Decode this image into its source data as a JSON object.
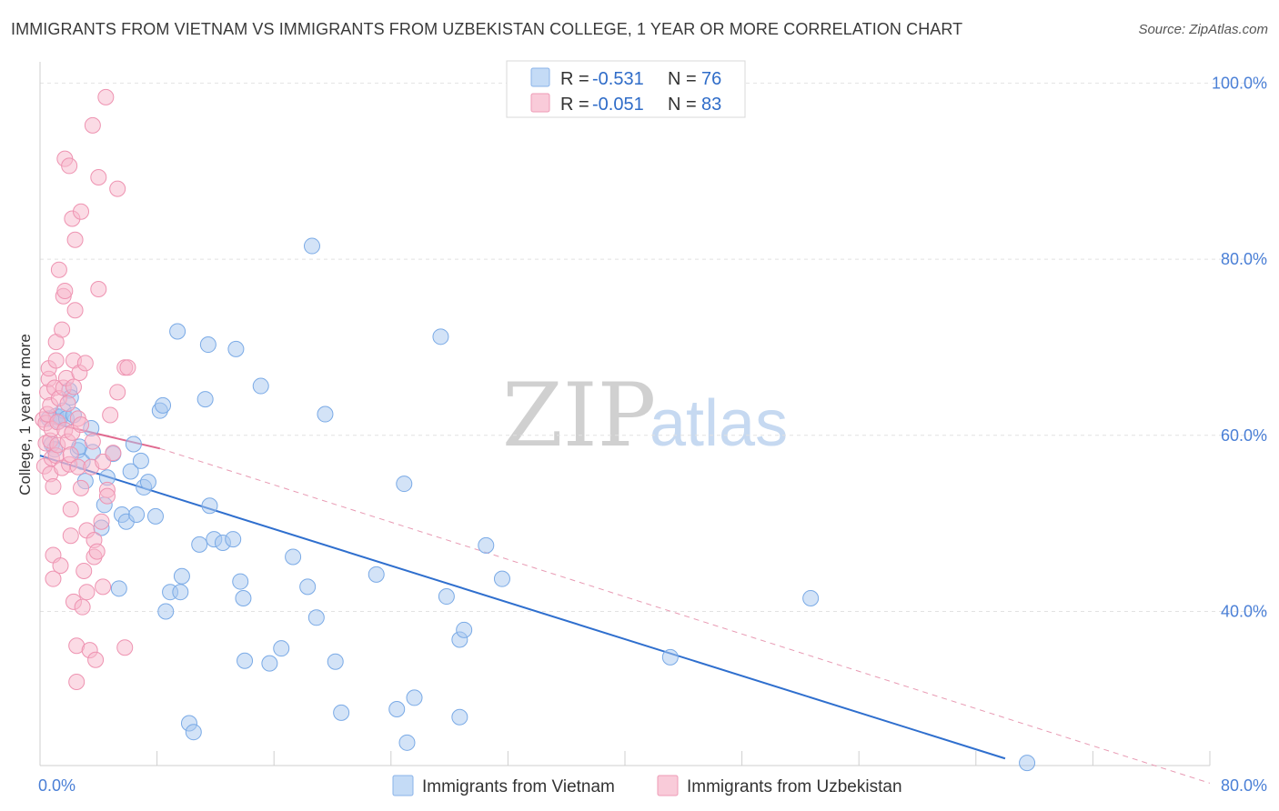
{
  "title": "IMMIGRANTS FROM VIETNAM VS IMMIGRANTS FROM UZBEKISTAN COLLEGE, 1 YEAR OR MORE CORRELATION CHART",
  "source": "Source: ZipAtlas.com",
  "watermark": {
    "zip": "ZIP",
    "atlas": "atlas"
  },
  "legend_box": {
    "rows": [
      {
        "r_label": "R =",
        "r_value": "-0.531",
        "n_label": "N =",
        "n_value": "76",
        "color": "#a8c8f0"
      },
      {
        "r_label": "R =",
        "r_value": "-0.051",
        "n_label": "N =",
        "n_value": "83",
        "color": "#f7b8cc"
      }
    ]
  },
  "chart_data": {
    "type": "scatter",
    "title": "IMMIGRANTS FROM VIETNAM VS IMMIGRANTS FROM UZBEKISTAN COLLEGE, 1 YEAR OR MORE CORRELATION CHART",
    "xlabel": "",
    "ylabel": "College, 1 year or more",
    "xlim": [
      0,
      80
    ],
    "ylim": [
      22.5,
      102
    ],
    "x_tick_labels": [
      "0.0%",
      "80.0%"
    ],
    "y_tick_labels": [
      "100.0%",
      "80.0%",
      "60.0%",
      "40.0%"
    ],
    "y_tick_values": [
      100,
      80,
      60,
      40
    ],
    "grid": true,
    "legend_position": "bottom",
    "series": [
      {
        "name": "Immigrants from Vietnam",
        "color": "#a8c8f0",
        "stroke": "#7aaae6",
        "trend": {
          "x": [
            0,
            66
          ],
          "y": [
            57.7,
            23.3
          ],
          "color": "#2f6fce",
          "dashed": false
        },
        "points": [
          [
            0.6,
            61.9
          ],
          [
            0.8,
            59.0
          ],
          [
            1.0,
            58.4
          ],
          [
            1.1,
            62.2
          ],
          [
            1.3,
            61.6
          ],
          [
            1.4,
            62.1
          ],
          [
            1.6,
            62.8
          ],
          [
            1.8,
            61.9
          ],
          [
            2.0,
            65.1
          ],
          [
            2.1,
            64.3
          ],
          [
            2.3,
            62.3
          ],
          [
            2.6,
            58.3
          ],
          [
            2.7,
            58.7
          ],
          [
            2.9,
            57.0
          ],
          [
            3.1,
            54.8
          ],
          [
            3.5,
            60.8
          ],
          [
            3.6,
            58.1
          ],
          [
            4.2,
            49.5
          ],
          [
            4.4,
            52.1
          ],
          [
            4.6,
            55.2
          ],
          [
            5.0,
            57.9
          ],
          [
            5.4,
            42.6
          ],
          [
            5.6,
            51.0
          ],
          [
            5.9,
            50.2
          ],
          [
            6.2,
            55.9
          ],
          [
            6.4,
            59.0
          ],
          [
            6.6,
            51.0
          ],
          [
            6.9,
            57.1
          ],
          [
            7.1,
            54.1
          ],
          [
            7.4,
            54.7
          ],
          [
            7.9,
            50.8
          ],
          [
            8.2,
            62.8
          ],
          [
            8.4,
            63.4
          ],
          [
            8.6,
            40.0
          ],
          [
            8.9,
            42.2
          ],
          [
            9.4,
            71.8
          ],
          [
            9.6,
            42.2
          ],
          [
            9.7,
            44.0
          ],
          [
            10.2,
            27.3
          ],
          [
            10.5,
            26.3
          ],
          [
            10.9,
            47.6
          ],
          [
            11.3,
            64.1
          ],
          [
            11.5,
            70.3
          ],
          [
            11.6,
            52.0
          ],
          [
            11.9,
            48.2
          ],
          [
            12.5,
            47.8
          ],
          [
            13.2,
            48.2
          ],
          [
            13.4,
            69.8
          ],
          [
            13.7,
            43.4
          ],
          [
            13.9,
            41.5
          ],
          [
            14.0,
            34.4
          ],
          [
            15.1,
            65.6
          ],
          [
            15.7,
            34.1
          ],
          [
            16.5,
            35.8
          ],
          [
            17.3,
            46.2
          ],
          [
            18.3,
            42.8
          ],
          [
            18.6,
            81.5
          ],
          [
            18.9,
            39.3
          ],
          [
            19.5,
            62.4
          ],
          [
            20.2,
            34.3
          ],
          [
            20.6,
            28.5
          ],
          [
            23.0,
            44.2
          ],
          [
            24.4,
            28.9
          ],
          [
            24.9,
            54.5
          ],
          [
            25.1,
            25.1
          ],
          [
            25.6,
            30.2
          ],
          [
            27.4,
            71.2
          ],
          [
            27.8,
            41.7
          ],
          [
            28.7,
            36.8
          ],
          [
            29.0,
            37.9
          ],
          [
            28.7,
            28.0
          ],
          [
            30.5,
            47.5
          ],
          [
            31.6,
            43.7
          ],
          [
            43.1,
            34.8
          ],
          [
            52.7,
            41.5
          ],
          [
            67.5,
            22.8
          ]
        ]
      },
      {
        "name": "Immigrants from Uzbekistan",
        "color": "#f7b8cc",
        "stroke": "#ee93b1",
        "trend": {
          "x": [
            0,
            8.2
          ],
          "y": [
            61.7,
            58.5
          ],
          "color": "#e0698f",
          "dashed": false
        },
        "trend_ext": {
          "x": [
            8.2,
            80
          ],
          "y": [
            58.5,
            20.5
          ],
          "color": "#e89ab3",
          "dashed": true
        },
        "points": [
          [
            0.2,
            61.8
          ],
          [
            0.3,
            56.5
          ],
          [
            0.4,
            59.1
          ],
          [
            0.4,
            61.4
          ],
          [
            0.5,
            62.4
          ],
          [
            0.5,
            64.9
          ],
          [
            0.6,
            66.4
          ],
          [
            0.6,
            67.6
          ],
          [
            0.7,
            55.6
          ],
          [
            0.7,
            59.4
          ],
          [
            0.7,
            63.4
          ],
          [
            0.8,
            57.4
          ],
          [
            0.8,
            60.7
          ],
          [
            0.9,
            43.7
          ],
          [
            0.9,
            46.4
          ],
          [
            0.9,
            54.2
          ],
          [
            1.0,
            65.4
          ],
          [
            1.1,
            57.7
          ],
          [
            1.1,
            68.5
          ],
          [
            1.1,
            70.6
          ],
          [
            1.2,
            58.9
          ],
          [
            1.2,
            61.5
          ],
          [
            1.3,
            64.2
          ],
          [
            1.3,
            78.8
          ],
          [
            1.4,
            45.2
          ],
          [
            1.5,
            56.3
          ],
          [
            1.5,
            72.0
          ],
          [
            1.6,
            65.4
          ],
          [
            1.6,
            75.8
          ],
          [
            1.7,
            91.4
          ],
          [
            1.7,
            76.4
          ],
          [
            1.7,
            60.6
          ],
          [
            1.8,
            66.5
          ],
          [
            1.9,
            59.3
          ],
          [
            1.9,
            63.6
          ],
          [
            2.0,
            56.7
          ],
          [
            2.0,
            90.6
          ],
          [
            2.1,
            51.6
          ],
          [
            2.1,
            48.6
          ],
          [
            2.1,
            57.8
          ],
          [
            2.2,
            60.3
          ],
          [
            2.2,
            84.6
          ],
          [
            2.3,
            41.1
          ],
          [
            2.3,
            65.5
          ],
          [
            2.3,
            68.5
          ],
          [
            2.4,
            74.2
          ],
          [
            2.4,
            82.2
          ],
          [
            2.5,
            36.1
          ],
          [
            2.5,
            32.0
          ],
          [
            2.6,
            56.4
          ],
          [
            2.6,
            61.9
          ],
          [
            2.7,
            67.1
          ],
          [
            2.8,
            61.2
          ],
          [
            2.8,
            54.0
          ],
          [
            2.8,
            85.4
          ],
          [
            2.9,
            40.5
          ],
          [
            3.0,
            44.6
          ],
          [
            3.1,
            68.2
          ],
          [
            3.2,
            49.2
          ],
          [
            3.2,
            42.2
          ],
          [
            3.4,
            35.6
          ],
          [
            3.5,
            56.4
          ],
          [
            3.6,
            59.3
          ],
          [
            3.6,
            95.2
          ],
          [
            3.7,
            48.1
          ],
          [
            3.7,
            46.2
          ],
          [
            3.8,
            34.5
          ],
          [
            3.9,
            46.8
          ],
          [
            4.0,
            76.6
          ],
          [
            4.0,
            89.3
          ],
          [
            4.2,
            50.2
          ],
          [
            4.3,
            42.8
          ],
          [
            4.3,
            57.0
          ],
          [
            4.5,
            98.4
          ],
          [
            4.6,
            53.8
          ],
          [
            4.6,
            53.1
          ],
          [
            4.8,
            62.3
          ],
          [
            5.0,
            58.0
          ],
          [
            5.3,
            64.9
          ],
          [
            5.3,
            88.0
          ],
          [
            5.8,
            67.7
          ],
          [
            5.8,
            35.9
          ],
          [
            6.0,
            67.7
          ]
        ]
      }
    ]
  },
  "bottom_legend": [
    {
      "label": "Immigrants from Vietnam",
      "color": "#a8c8f0"
    },
    {
      "label": "Immigrants from Uzbekistan",
      "color": "#f7b8cc"
    }
  ]
}
